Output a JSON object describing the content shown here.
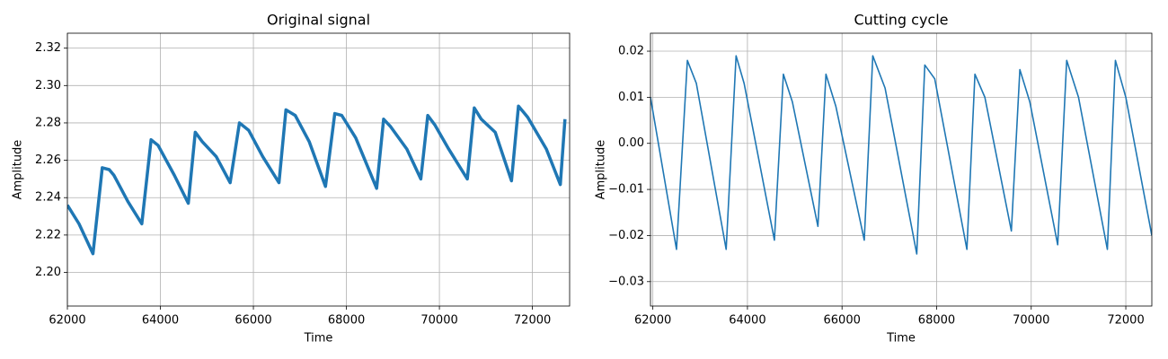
{
  "chart_data": [
    {
      "type": "line",
      "title": "Original signal",
      "xlabel": "Time",
      "ylabel": "Amplitude",
      "grid": true,
      "xlim": [
        62000,
        72800
      ],
      "ylim": [
        2.182,
        2.328
      ],
      "xticks": [
        62000,
        64000,
        66000,
        68000,
        70000,
        72000
      ],
      "yticks": [
        {
          "value": 2.2,
          "label": "2.20"
        },
        2.22,
        2.24,
        2.26,
        2.28,
        {
          "value": 2.3,
          "label": "2.30"
        },
        2.32
      ],
      "x": [
        62000,
        62250,
        62550,
        62750,
        62900,
        63000,
        63300,
        63600,
        63800,
        63950,
        64300,
        64600,
        64750,
        64900,
        65200,
        65500,
        65700,
        65900,
        66200,
        66550,
        66700,
        66900,
        67200,
        67550,
        67750,
        67900,
        68200,
        68650,
        68800,
        68950,
        69300,
        69600,
        69750,
        69900,
        70200,
        70600,
        70750,
        70900,
        71200,
        71550,
        71700,
        71900,
        72300,
        72600,
        72700
      ],
      "series": [
        {
          "name": "Original signal",
          "color": "#1f77b4",
          "values": [
            2.236,
            2.226,
            2.21,
            2.256,
            2.255,
            2.252,
            2.238,
            2.226,
            2.271,
            2.268,
            2.252,
            2.237,
            2.275,
            2.27,
            2.262,
            2.248,
            2.28,
            2.276,
            2.262,
            2.248,
            2.287,
            2.284,
            2.27,
            2.246,
            2.285,
            2.284,
            2.272,
            2.245,
            2.282,
            2.278,
            2.266,
            2.25,
            2.284,
            2.279,
            2.266,
            2.25,
            2.288,
            2.282,
            2.275,
            2.249,
            2.289,
            2.283,
            2.266,
            2.247,
            2.282
          ]
        }
      ]
    },
    {
      "type": "line",
      "title": "Cutting cycle",
      "xlabel": "Time",
      "ylabel": "Amplitude",
      "grid": true,
      "xlim": [
        61950,
        72550
      ],
      "ylim": [
        -0.0353,
        0.0239
      ],
      "xticks": [
        62000,
        64000,
        66000,
        68000,
        70000,
        72000
      ],
      "yticks": [
        {
          "value": -0.03,
          "label": "−0.03"
        },
        {
          "value": -0.02,
          "label": "−0.02"
        },
        {
          "value": -0.01,
          "label": "−0.01"
        },
        {
          "value": 0,
          "label": "0.00"
        },
        0.01,
        0.02
      ],
      "x": [
        61950,
        62500,
        62730,
        62920,
        63550,
        63760,
        63930,
        64570,
        64760,
        64950,
        65490,
        65660,
        65870,
        66470,
        66650,
        66910,
        67580,
        67750,
        67960,
        68640,
        68810,
        69020,
        69580,
        69760,
        69970,
        70560,
        70750,
        71000,
        71610,
        71780,
        72000,
        72550
      ],
      "series": [
        {
          "name": "Cutting cycle",
          "color": "#1f77b4",
          "values": [
            0.01,
            -0.023,
            0.018,
            0.013,
            -0.023,
            0.019,
            0.013,
            -0.021,
            0.015,
            0.009,
            -0.018,
            0.015,
            0.008,
            -0.021,
            0.019,
            0.012,
            -0.024,
            0.017,
            0.014,
            -0.023,
            0.015,
            0.01,
            -0.019,
            0.016,
            0.009,
            -0.022,
            0.018,
            0.01,
            -0.023,
            0.018,
            0.01,
            -0.02
          ]
        }
      ]
    }
  ]
}
